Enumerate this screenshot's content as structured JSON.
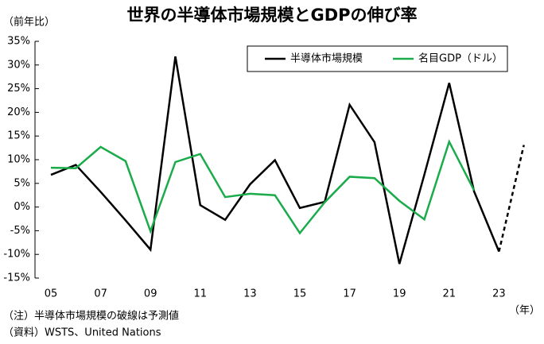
{
  "chart_data": {
    "type": "line",
    "title": "世界の半導体市場規模とGDPの伸び率",
    "y_unit": "（前年比）",
    "x_unit": "（年）",
    "notes": [
      "（注）半導体市場規模の破線は予測値",
      "（資料）WSTS、United Nations"
    ],
    "categories": [
      "05",
      null,
      "07",
      null,
      "09",
      null,
      "11",
      null,
      "13",
      null,
      "15",
      null,
      "17",
      null,
      "19",
      null,
      "21",
      null,
      "23",
      null
    ],
    "series": [
      {
        "name": "半導体市場規模",
        "color": "#000000",
        "dashed_last": true,
        "values": [
          6.8,
          8.9,
          3.2,
          -2.8,
          -9.0,
          31.8,
          0.4,
          -2.7,
          4.8,
          9.9,
          -0.2,
          1.1,
          21.6,
          13.7,
          -12.0,
          6.8,
          26.2,
          3.3,
          -9.4,
          13.1
        ]
      },
      {
        "name": "名目GDP（ドル）",
        "color": "#1aab4a",
        "dashed_last": false,
        "values": [
          8.3,
          8.2,
          12.7,
          9.7,
          -5.1,
          9.5,
          11.2,
          2.1,
          2.8,
          2.5,
          -5.5,
          1.0,
          6.4,
          6.1,
          1.3,
          -2.6,
          13.8,
          3.5,
          null,
          null
        ]
      }
    ],
    "ylim": [
      -15,
      35
    ],
    "yticks": [
      {
        "value": -15,
        "label": "-15%"
      },
      {
        "value": -10,
        "label": "-10%"
      },
      {
        "value": -5,
        "label": "-5%"
      },
      {
        "value": 0,
        "label": "0%"
      },
      {
        "value": 5,
        "label": "5%"
      },
      {
        "value": 10,
        "label": "10%"
      },
      {
        "value": 15,
        "label": "15%"
      },
      {
        "value": 20,
        "label": "20%"
      },
      {
        "value": 25,
        "label": "25%"
      },
      {
        "value": 30,
        "label": "30%"
      },
      {
        "value": 35,
        "label": "35%"
      }
    ],
    "grid": false
  }
}
